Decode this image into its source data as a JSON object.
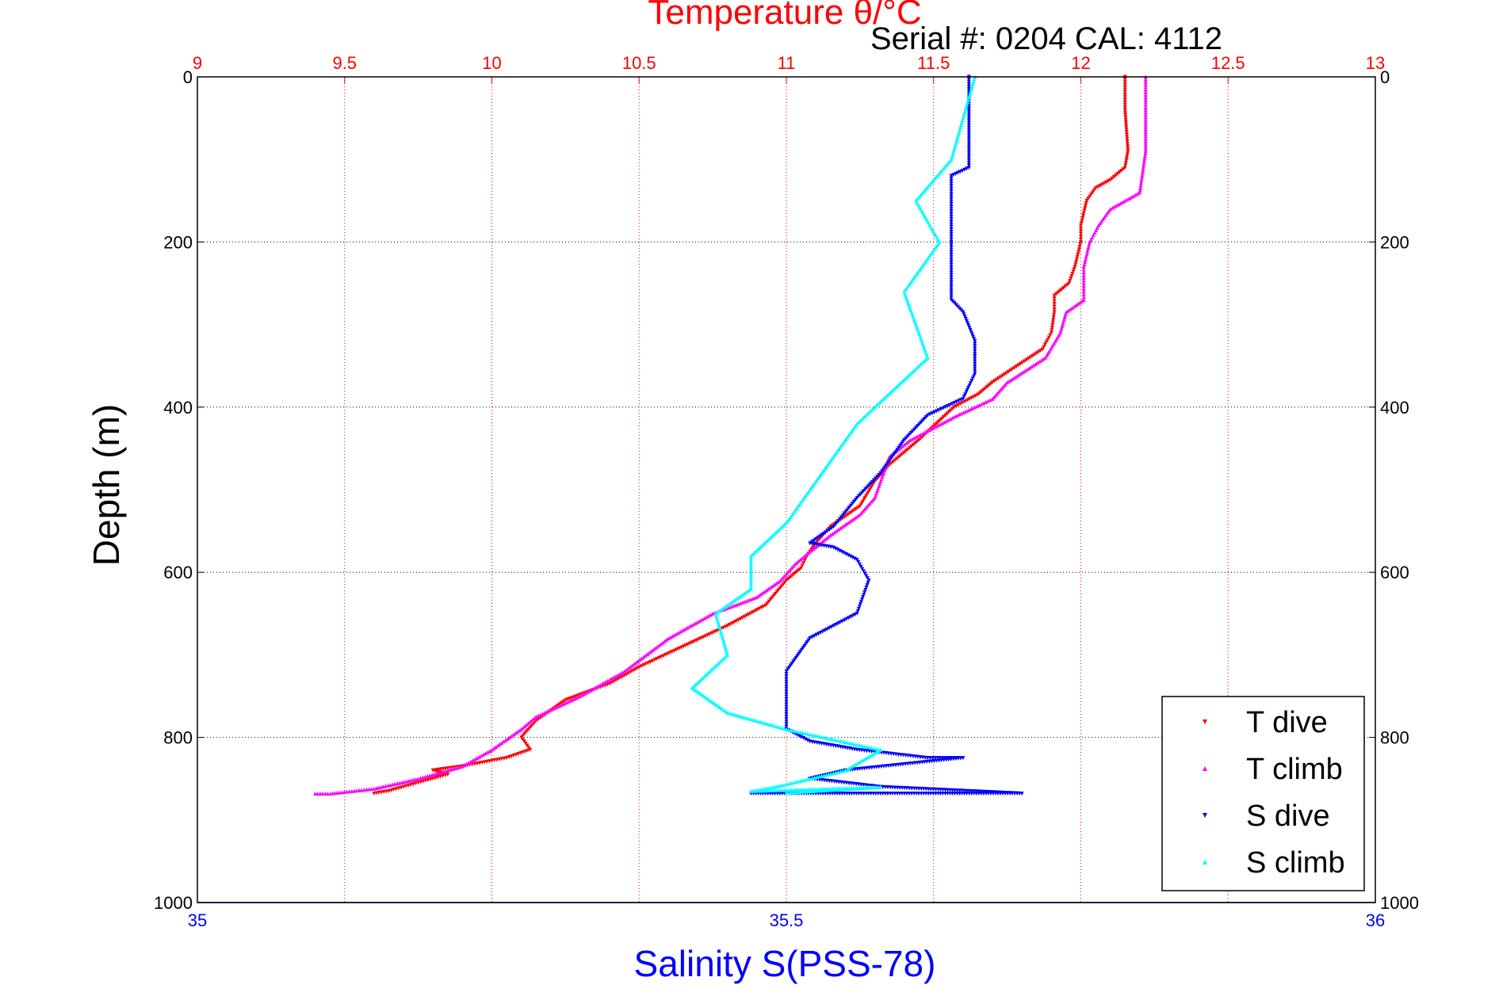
{
  "chart_data": {
    "type": "scatter",
    "title": "Temperature θ/°C",
    "subtitle": "Serial #: 0204  CAL: 4112",
    "ylabel": "Depth (m)",
    "xlabel_bottom": "Salinity S(PSS-78)",
    "xlabel_top": "Temperature θ/°C",
    "ylim": [
      1000,
      0
    ],
    "yticks": [
      0,
      200,
      400,
      600,
      800,
      1000
    ],
    "ytick_labels": [
      "0",
      "200",
      "400",
      "600",
      "800",
      "1000"
    ],
    "x_top_lim": [
      9,
      13
    ],
    "x_top_ticks": [
      9,
      9.5,
      10,
      10.5,
      11,
      11.5,
      12,
      12.5,
      13
    ],
    "x_top_tick_labels": [
      "9",
      "9.5",
      "10",
      "10.5",
      "11",
      "11.5",
      "12",
      "12.5",
      "13"
    ],
    "x_bottom_lim": [
      35,
      36
    ],
    "x_bottom_ticks": [
      35,
      35.5,
      36
    ],
    "x_bottom_tick_labels": [
      "35",
      "35.5",
      "36"
    ],
    "grid": true,
    "legend_position": "bottom-right",
    "series": [
      {
        "name": "T dive",
        "axis": "top",
        "color": "#ff0000",
        "marker": "triangle-down",
        "points": [
          [
            12.15,
            0
          ],
          [
            12.15,
            40
          ],
          [
            12.16,
            90
          ],
          [
            12.15,
            110
          ],
          [
            12.1,
            125
          ],
          [
            12.05,
            135
          ],
          [
            12.02,
            150
          ],
          [
            12.0,
            180
          ],
          [
            12.0,
            200
          ],
          [
            11.98,
            230
          ],
          [
            11.96,
            250
          ],
          [
            11.91,
            265
          ],
          [
            11.91,
            285
          ],
          [
            11.9,
            310
          ],
          [
            11.87,
            330
          ],
          [
            11.7,
            370
          ],
          [
            11.65,
            385
          ],
          [
            11.57,
            400
          ],
          [
            11.45,
            440
          ],
          [
            11.35,
            470
          ],
          [
            11.3,
            490
          ],
          [
            11.25,
            520
          ],
          [
            11.15,
            545
          ],
          [
            11.1,
            565
          ],
          [
            11.07,
            580
          ],
          [
            11.05,
            595
          ],
          [
            11.0,
            610
          ],
          [
            10.93,
            640
          ],
          [
            10.8,
            665
          ],
          [
            10.65,
            690
          ],
          [
            10.5,
            715
          ],
          [
            10.4,
            735
          ],
          [
            10.25,
            755
          ],
          [
            10.15,
            780
          ],
          [
            10.1,
            800
          ],
          [
            10.13,
            815
          ],
          [
            10.05,
            825
          ],
          [
            9.9,
            835
          ],
          [
            9.8,
            840
          ],
          [
            9.85,
            845
          ],
          [
            9.75,
            855
          ],
          [
            9.65,
            865
          ],
          [
            9.6,
            868
          ]
        ]
      },
      {
        "name": "T climb",
        "axis": "top",
        "color": "#ff00ff",
        "marker": "triangle-up",
        "points": [
          [
            12.22,
            0
          ],
          [
            12.22,
            40
          ],
          [
            12.22,
            90
          ],
          [
            12.2,
            140
          ],
          [
            12.1,
            160
          ],
          [
            12.06,
            180
          ],
          [
            12.03,
            200
          ],
          [
            12.01,
            230
          ],
          [
            12.01,
            250
          ],
          [
            12.01,
            270
          ],
          [
            11.95,
            285
          ],
          [
            11.93,
            310
          ],
          [
            11.88,
            340
          ],
          [
            11.75,
            370
          ],
          [
            11.7,
            390
          ],
          [
            11.58,
            410
          ],
          [
            11.42,
            440
          ],
          [
            11.35,
            460
          ],
          [
            11.32,
            490
          ],
          [
            11.3,
            510
          ],
          [
            11.25,
            530
          ],
          [
            11.15,
            555
          ],
          [
            11.08,
            575
          ],
          [
            11.03,
            590
          ],
          [
            10.98,
            610
          ],
          [
            10.9,
            630
          ],
          [
            10.75,
            650
          ],
          [
            10.6,
            680
          ],
          [
            10.45,
            720
          ],
          [
            10.3,
            750
          ],
          [
            10.15,
            775
          ],
          [
            10.1,
            790
          ],
          [
            10.0,
            815
          ],
          [
            9.9,
            835
          ],
          [
            9.75,
            850
          ],
          [
            9.6,
            862
          ],
          [
            9.45,
            868
          ],
          [
            9.4,
            868
          ]
        ]
      },
      {
        "name": "S dive",
        "axis": "bottom",
        "color": "#0000ff",
        "marker": "triangle-down",
        "points": [
          [
            35.655,
            0
          ],
          [
            35.655,
            50
          ],
          [
            35.655,
            110
          ],
          [
            35.64,
            120
          ],
          [
            35.64,
            160
          ],
          [
            35.64,
            200
          ],
          [
            35.64,
            240
          ],
          [
            35.64,
            270
          ],
          [
            35.65,
            285
          ],
          [
            35.66,
            320
          ],
          [
            35.66,
            360
          ],
          [
            35.65,
            390
          ],
          [
            35.62,
            410
          ],
          [
            35.6,
            440
          ],
          [
            35.58,
            480
          ],
          [
            35.56,
            510
          ],
          [
            35.54,
            545
          ],
          [
            35.52,
            565
          ],
          [
            35.54,
            570
          ],
          [
            35.56,
            585
          ],
          [
            35.57,
            610
          ],
          [
            35.56,
            650
          ],
          [
            35.52,
            680
          ],
          [
            35.5,
            720
          ],
          [
            35.5,
            760
          ],
          [
            35.5,
            790
          ],
          [
            35.52,
            805
          ],
          [
            35.56,
            815
          ],
          [
            35.62,
            825
          ],
          [
            35.65,
            825
          ],
          [
            35.55,
            840
          ],
          [
            35.52,
            850
          ],
          [
            35.58,
            860
          ],
          [
            35.7,
            868
          ],
          [
            35.47,
            868
          ]
        ]
      },
      {
        "name": "S climb",
        "axis": "bottom",
        "color": "#00ffff",
        "marker": "triangle-up",
        "points": [
          [
            35.66,
            0
          ],
          [
            35.65,
            50
          ],
          [
            35.64,
            100
          ],
          [
            35.61,
            150
          ],
          [
            35.63,
            200
          ],
          [
            35.6,
            260
          ],
          [
            35.61,
            300
          ],
          [
            35.62,
            340
          ],
          [
            35.59,
            380
          ],
          [
            35.56,
            420
          ],
          [
            35.54,
            460
          ],
          [
            35.52,
            500
          ],
          [
            35.5,
            540
          ],
          [
            35.47,
            580
          ],
          [
            35.47,
            620
          ],
          [
            35.44,
            650
          ],
          [
            35.45,
            700
          ],
          [
            35.42,
            740
          ],
          [
            35.45,
            770
          ],
          [
            35.5,
            790
          ],
          [
            35.58,
            815
          ],
          [
            35.55,
            840
          ],
          [
            35.49,
            860
          ],
          [
            35.47,
            865
          ],
          [
            35.58,
            860
          ],
          [
            35.5,
            867
          ]
        ]
      }
    ],
    "legend": [
      "T dive",
      "T climb",
      "S dive",
      "S climb"
    ]
  }
}
